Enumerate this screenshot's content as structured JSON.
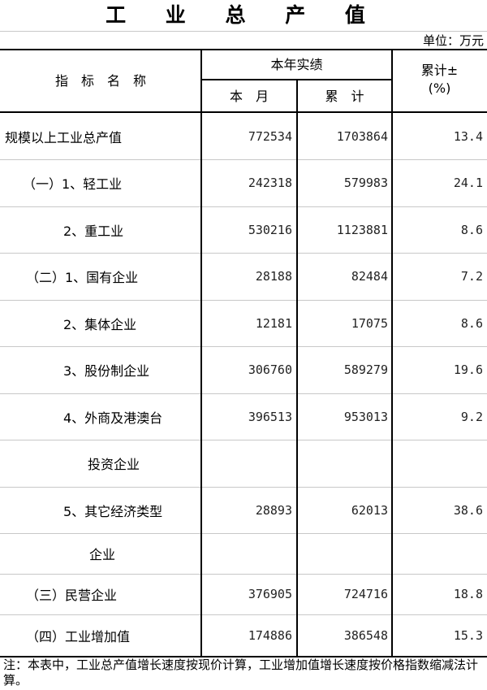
{
  "title": "工 业 总 产 值",
  "unit": "单位：万元",
  "header": {
    "name": "指　标　名　称",
    "group": "本年实绩",
    "month": "本　月",
    "cumulative": "累　计",
    "growth_line1": "累计±",
    "growth_line2": "(%)"
  },
  "rows": [
    {
      "name": "规模以上工业总产值",
      "month": "772534",
      "cumulative": "1703864",
      "growth": "13.4"
    },
    {
      "name": "（一）1、轻工业",
      "month": "242318",
      "cumulative": "579983",
      "growth": "24.1"
    },
    {
      "name": "2、重工业",
      "month": "530216",
      "cumulative": "1123881",
      "growth": "8.6"
    },
    {
      "name": "（二）1、国有企业",
      "month": "28188",
      "cumulative": "82484",
      "growth": "7.2"
    },
    {
      "name": "2、集体企业",
      "month": "12181",
      "cumulative": "17075",
      "growth": "8.6"
    },
    {
      "name": "3、股份制企业",
      "month": "306760",
      "cumulative": "589279",
      "growth": "19.6"
    },
    {
      "name": "4、外商及港澳台",
      "month": "396513",
      "cumulative": "953013",
      "growth": "9.2"
    },
    {
      "name": "投资企业",
      "month": "",
      "cumulative": "",
      "growth": ""
    },
    {
      "name": "5、其它经济类型",
      "month": "28893",
      "cumulative": "62013",
      "growth": "38.6"
    },
    {
      "name": "企业",
      "month": "",
      "cumulative": "",
      "growth": ""
    },
    {
      "name": "（三）民营企业",
      "month": "376905",
      "cumulative": "724716",
      "growth": "18.8"
    },
    {
      "name": "（四）工业增加值",
      "month": "174886",
      "cumulative": "386548",
      "growth": "15.3"
    }
  ],
  "note": "注：本表中，工业总产值增长速度按现价计算，工业增加值增长速度按价格指数缩减法计算。"
}
